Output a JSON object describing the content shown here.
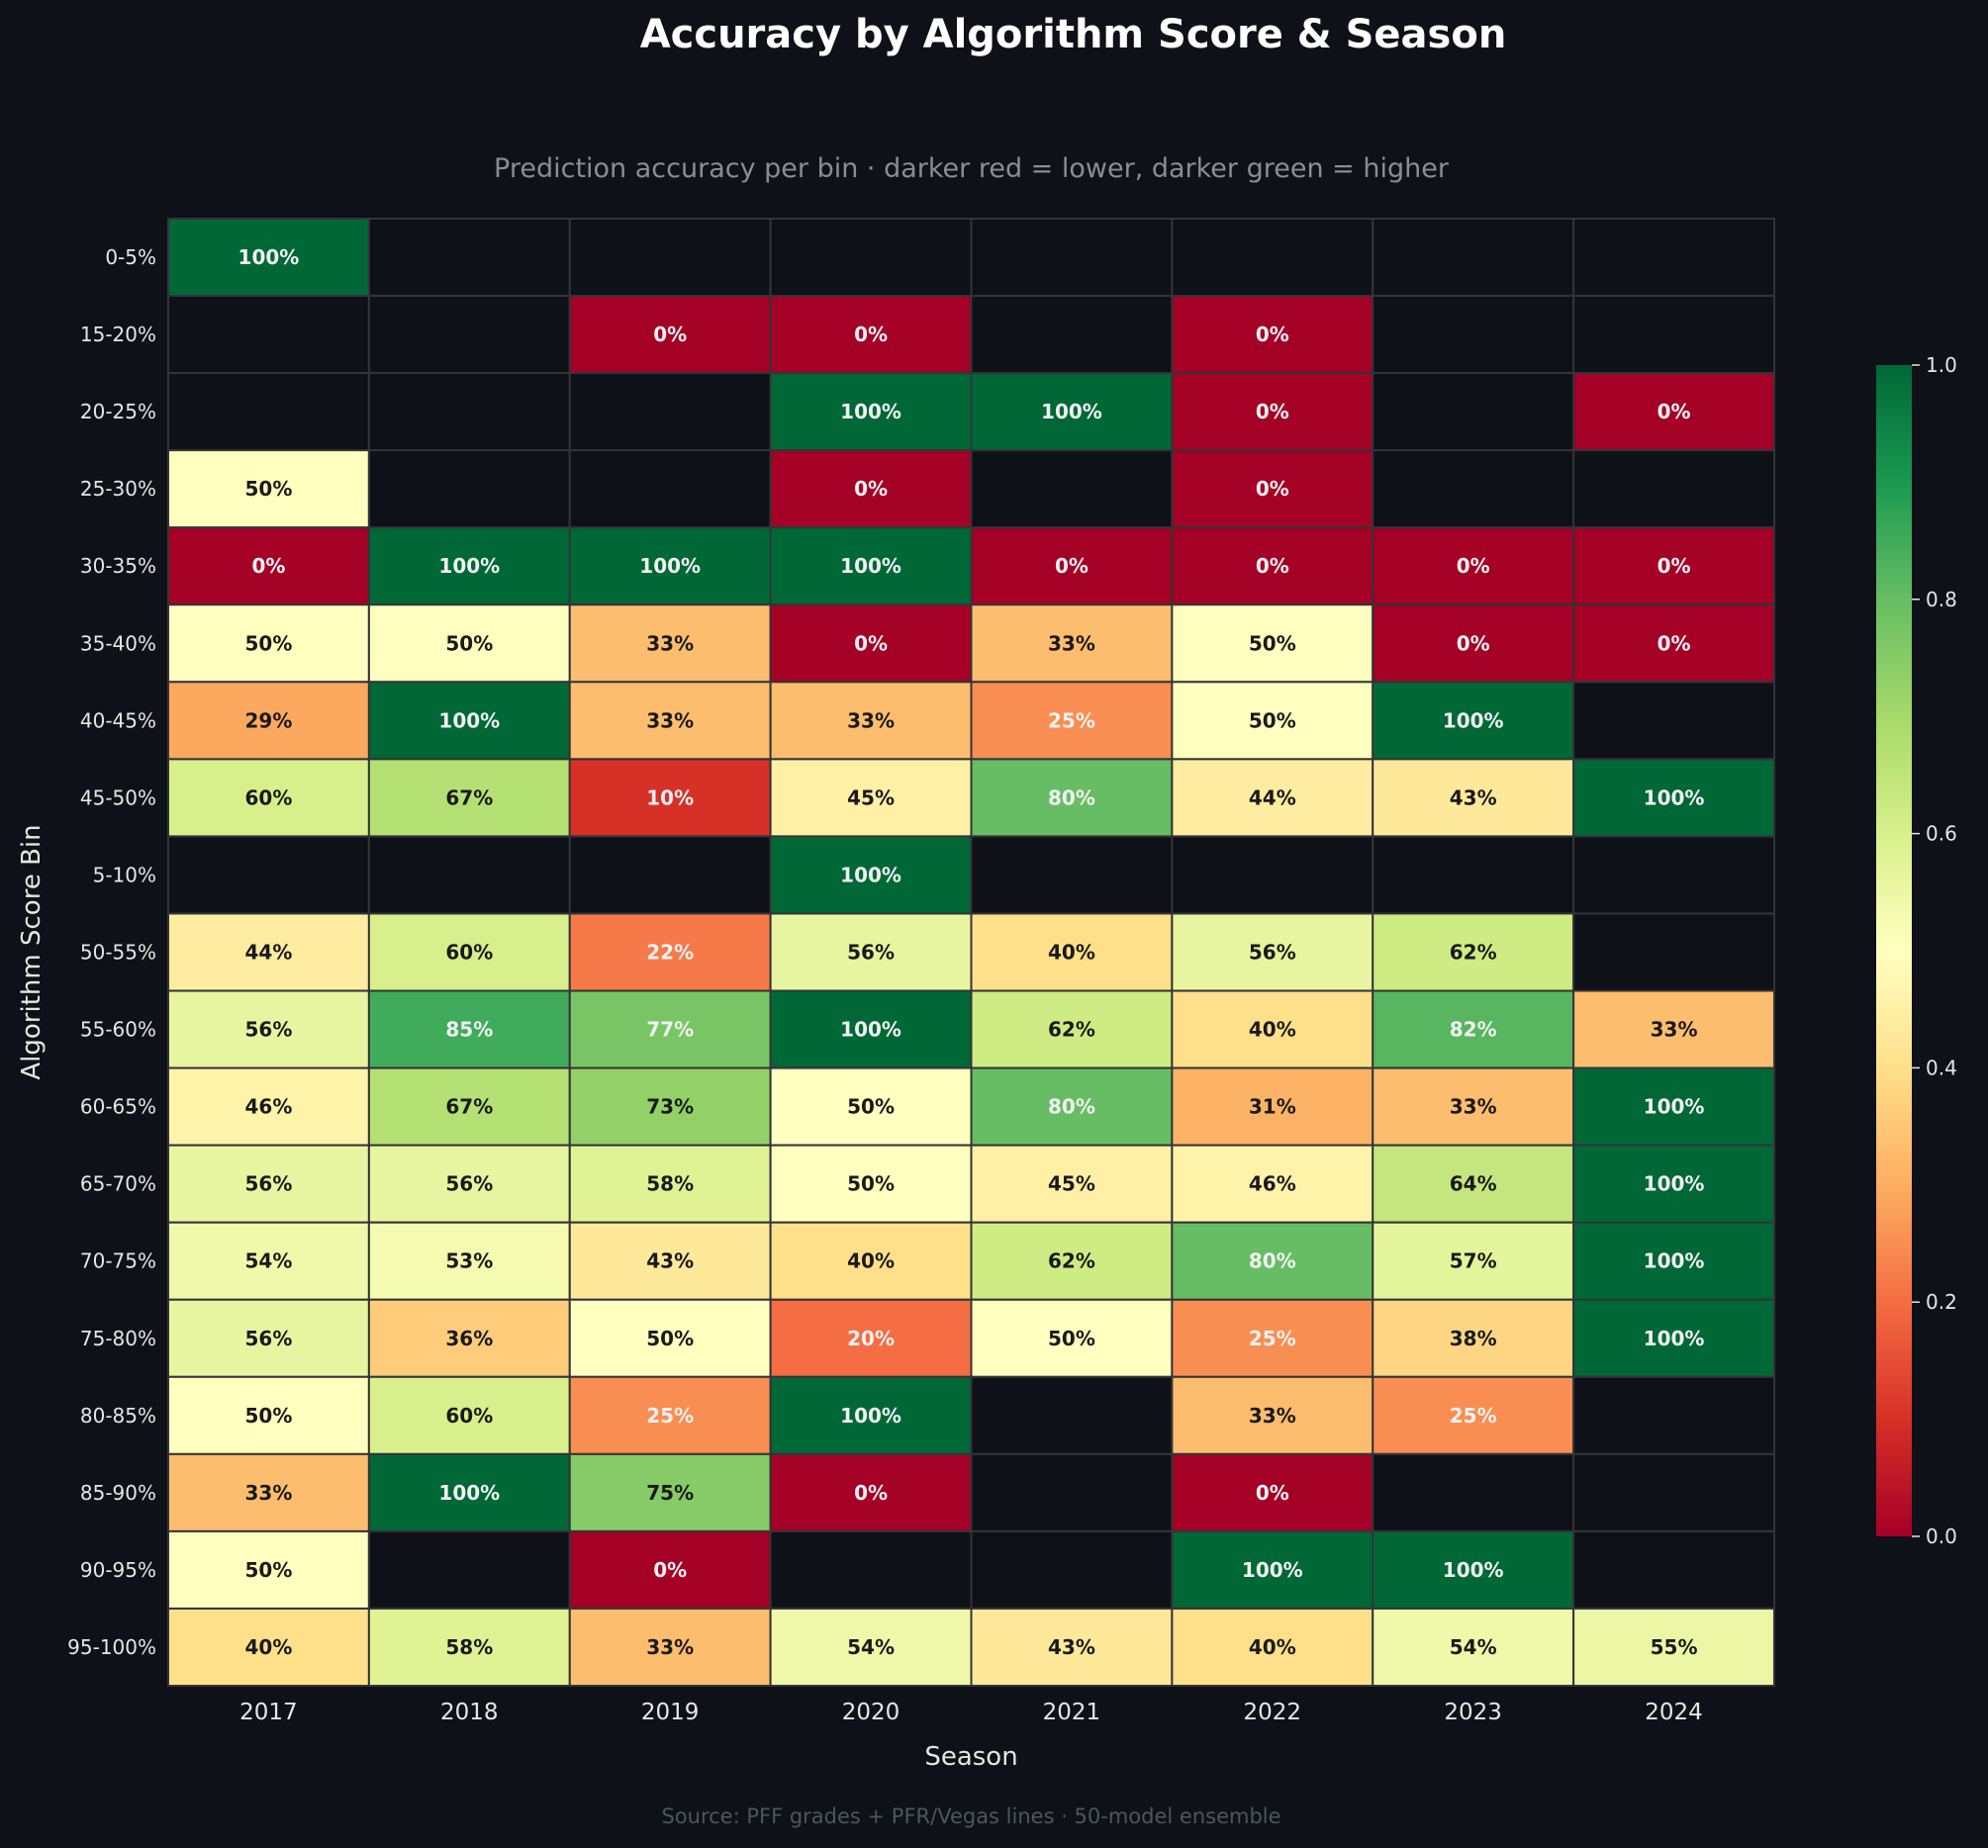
{
  "title": "Accuracy by Algorithm Score & Season",
  "subtitle": "Prediction accuracy per bin · darker red = lower, darker green = higher",
  "footer": "Source: PFF grades + PFR/Vegas lines · 50-model ensemble",
  "colors": {
    "background": "#0e1117",
    "empty_cell": "#0e1117",
    "cell_border": "#333438",
    "text_light": "#e6e6e6",
    "text_dark": "#1a1a1a",
    "colormap": "RdYlGn"
  },
  "chart_data": {
    "type": "heatmap",
    "title": "Accuracy by Algorithm Score & Season",
    "xlabel": "Season",
    "ylabel": "Algorithm Score Bin",
    "x": [
      "2017",
      "2018",
      "2019",
      "2020",
      "2021",
      "2022",
      "2023",
      "2024"
    ],
    "y": [
      "0-5%",
      "15-20%",
      "20-25%",
      "25-30%",
      "30-35%",
      "35-40%",
      "40-45%",
      "45-50%",
      "5-10%",
      "50-55%",
      "55-60%",
      "60-65%",
      "65-70%",
      "70-75%",
      "75-80%",
      "80-85%",
      "85-90%",
      "90-95%",
      "95-100%"
    ],
    "values": [
      [
        1.0,
        null,
        null,
        null,
        null,
        null,
        null,
        null
      ],
      [
        null,
        null,
        0.0,
        0.0,
        null,
        0.0,
        null,
        null
      ],
      [
        null,
        null,
        null,
        1.0,
        1.0,
        0.0,
        null,
        0.0
      ],
      [
        0.5,
        null,
        null,
        0.0,
        null,
        0.0,
        null,
        null
      ],
      [
        0.0,
        1.0,
        1.0,
        1.0,
        0.0,
        0.0,
        0.0,
        0.0
      ],
      [
        0.5,
        0.5,
        0.33,
        0.0,
        0.33,
        0.5,
        0.0,
        0.0
      ],
      [
        0.29,
        1.0,
        0.33,
        0.33,
        0.25,
        0.5,
        1.0,
        null
      ],
      [
        0.6,
        0.67,
        0.1,
        0.45,
        0.8,
        0.44,
        0.43,
        1.0
      ],
      [
        null,
        null,
        null,
        1.0,
        null,
        null,
        null,
        null
      ],
      [
        0.44,
        0.6,
        0.22,
        0.56,
        0.4,
        0.56,
        0.62,
        null
      ],
      [
        0.56,
        0.85,
        0.77,
        1.0,
        0.62,
        0.4,
        0.82,
        0.33
      ],
      [
        0.46,
        0.67,
        0.73,
        0.5,
        0.8,
        0.31,
        0.33,
        1.0
      ],
      [
        0.56,
        0.56,
        0.58,
        0.5,
        0.45,
        0.46,
        0.64,
        1.0
      ],
      [
        0.54,
        0.53,
        0.43,
        0.4,
        0.62,
        0.8,
        0.57,
        1.0
      ],
      [
        0.56,
        0.36,
        0.5,
        0.2,
        0.5,
        0.25,
        0.38,
        1.0
      ],
      [
        0.5,
        0.6,
        0.25,
        1.0,
        null,
        0.33,
        0.25,
        null
      ],
      [
        0.33,
        1.0,
        0.75,
        0.0,
        null,
        0.0,
        null,
        null
      ],
      [
        0.5,
        null,
        0.0,
        null,
        null,
        1.0,
        1.0,
        null
      ],
      [
        0.4,
        0.58,
        0.33,
        0.54,
        0.43,
        0.4,
        0.54,
        0.55
      ]
    ],
    "value_labels": [
      [
        "100%",
        "",
        "",
        "",
        "",
        "",
        "",
        ""
      ],
      [
        "",
        "",
        "0%",
        "0%",
        "",
        "0%",
        "",
        ""
      ],
      [
        "",
        "",
        "",
        "100%",
        "100%",
        "0%",
        "",
        "0%"
      ],
      [
        "50%",
        "",
        "",
        "0%",
        "",
        "0%",
        "",
        ""
      ],
      [
        "0%",
        "100%",
        "100%",
        "100%",
        "0%",
        "0%",
        "0%",
        "0%"
      ],
      [
        "50%",
        "50%",
        "33%",
        "0%",
        "33%",
        "50%",
        "0%",
        "0%"
      ],
      [
        "29%",
        "100%",
        "33%",
        "33%",
        "25%",
        "50%",
        "100%",
        ""
      ],
      [
        "60%",
        "67%",
        "10%",
        "45%",
        "80%",
        "44%",
        "43%",
        "100%"
      ],
      [
        "",
        "",
        "",
        "100%",
        "",
        "",
        "",
        ""
      ],
      [
        "44%",
        "60%",
        "22%",
        "56%",
        "40%",
        "56%",
        "62%",
        ""
      ],
      [
        "56%",
        "85%",
        "77%",
        "100%",
        "62%",
        "40%",
        "82%",
        "33%"
      ],
      [
        "46%",
        "67%",
        "73%",
        "50%",
        "80%",
        "31%",
        "33%",
        "100%"
      ],
      [
        "56%",
        "56%",
        "58%",
        "50%",
        "45%",
        "46%",
        "64%",
        "100%"
      ],
      [
        "54%",
        "53%",
        "43%",
        "40%",
        "62%",
        "80%",
        "57%",
        "100%"
      ],
      [
        "56%",
        "36%",
        "50%",
        "20%",
        "50%",
        "25%",
        "38%",
        "100%"
      ],
      [
        "50%",
        "60%",
        "25%",
        "100%",
        "",
        "33%",
        "25%",
        ""
      ],
      [
        "33%",
        "100%",
        "75%",
        "0%",
        "",
        "0%",
        "",
        ""
      ],
      [
        "50%",
        "",
        "0%",
        "",
        "",
        "100%",
        "100%",
        ""
      ],
      [
        "40%",
        "58%",
        "33%",
        "54%",
        "43%",
        "40%",
        "54%",
        "55%"
      ]
    ],
    "colorbar": {
      "range": [
        0.0,
        1.0
      ],
      "ticks": [
        0.0,
        0.2,
        0.4,
        0.6,
        0.8,
        1.0
      ],
      "tick_labels": [
        "0.0",
        "0.2",
        "0.4",
        "0.6",
        "0.8",
        "1.0"
      ]
    },
    "grid": true,
    "legend": "colorbar-right"
  }
}
